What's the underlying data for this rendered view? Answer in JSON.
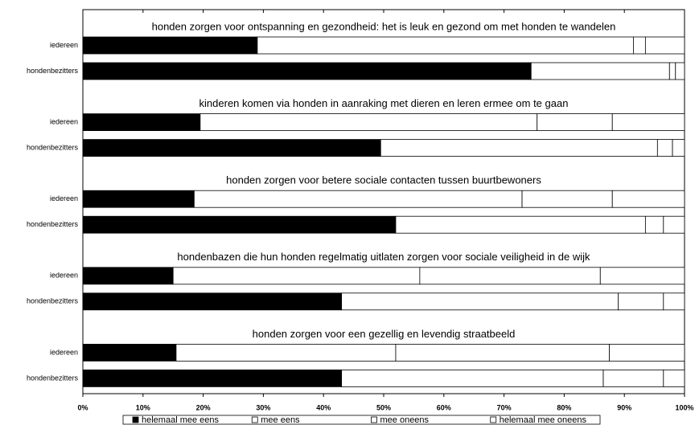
{
  "chart_data": {
    "type": "bar",
    "stacked": true,
    "orientation": "horizontal",
    "group_titles": [
      "honden zorgen voor ontspanning en gezondheid: het is leuk en gezond om met honden te wandelen",
      "kinderen komen via honden in aanraking met dieren en leren ermee om te gaan",
      "honden zorgen voor betere sociale contacten tussen buurtbewoners",
      "hondenbazen die hun honden regelmatig uitlaten zorgen voor sociale veiligheid in de wijk",
      "honden zorgen voor een gezellig en levendig straatbeeld"
    ],
    "categories": [
      "iedereen",
      "hondenbezitters",
      "iedereen",
      "hondenbezitters",
      "iedereen",
      "hondenbezitters",
      "iedereen",
      "hondenbezitters",
      "iedereen",
      "hondenbezitters"
    ],
    "series": [
      {
        "name": "helemaal mee eens",
        "color": "#000000",
        "values": [
          29,
          74.5,
          19.5,
          49.5,
          18.5,
          52,
          15,
          43,
          15.5,
          43
        ]
      },
      {
        "name": "mee eens",
        "color": "#ffffff",
        "values": [
          62.5,
          23,
          56,
          46,
          54.5,
          41.5,
          41,
          46,
          36.5,
          43.5
        ]
      },
      {
        "name": "mee oneens",
        "color": "#ffffff",
        "values": [
          2,
          1,
          12.5,
          2.5,
          15,
          3,
          30,
          7.5,
          35.5,
          10
        ]
      },
      {
        "name": "helemaal mee oneens",
        "color": "#ffffff",
        "values": [
          6.5,
          1.5,
          12,
          2,
          12,
          3.5,
          14,
          3.5,
          12.5,
          3.5
        ]
      }
    ],
    "xlim": [
      0,
      100
    ],
    "xticks": [
      {
        "value": 0,
        "label": "0%"
      },
      {
        "value": 10,
        "label": "10%"
      },
      {
        "value": 20,
        "label": "20%"
      },
      {
        "value": 30,
        "label": "30%"
      },
      {
        "value": 40,
        "label": "40%"
      },
      {
        "value": 50,
        "label": "50%"
      },
      {
        "value": 60,
        "label": "60%"
      },
      {
        "value": 70,
        "label": "70%"
      },
      {
        "value": 80,
        "label": "80%"
      },
      {
        "value": 90,
        "label": "90%"
      },
      {
        "value": 100,
        "label": "100%"
      }
    ],
    "legend": "bottom"
  }
}
